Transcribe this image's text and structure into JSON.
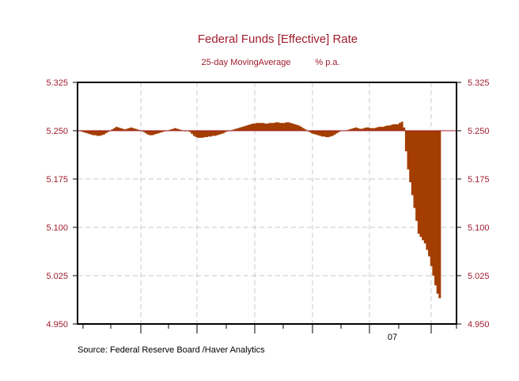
{
  "chart_data": {
    "type": "bar",
    "title": "Federal Funds [Effective] Rate",
    "subtitle_left": "25-day MovingAverage",
    "subtitle_right": "% p.a.",
    "source": "Source:  Federal Reserve Board /Haver Analytics",
    "baseline": 5.25,
    "ylim": [
      4.95,
      5.325
    ],
    "yticks": [
      "5.325",
      "5.250",
      "5.175",
      "5.100",
      "5.025",
      "4.950"
    ],
    "ytick_values": [
      5.325,
      5.25,
      5.175,
      5.1,
      5.025,
      4.95
    ],
    "x_tick_labels": [
      {
        "label": "07",
        "index": 150
      }
    ],
    "grid": true,
    "values": [
      5.25,
      5.249,
      5.248,
      5.247,
      5.246,
      5.245,
      5.244,
      5.243,
      5.243,
      5.242,
      5.242,
      5.243,
      5.244,
      5.246,
      5.248,
      5.25,
      5.252,
      5.254,
      5.256,
      5.255,
      5.254,
      5.253,
      5.252,
      5.253,
      5.254,
      5.255,
      5.254,
      5.253,
      5.252,
      5.251,
      5.25,
      5.248,
      5.246,
      5.244,
      5.243,
      5.243,
      5.244,
      5.245,
      5.246,
      5.247,
      5.248,
      5.249,
      5.25,
      5.251,
      5.252,
      5.253,
      5.254,
      5.253,
      5.252,
      5.251,
      5.25,
      5.249,
      5.25,
      5.248,
      5.245,
      5.242,
      5.24,
      5.239,
      5.239,
      5.239,
      5.24,
      5.24,
      5.241,
      5.241,
      5.242,
      5.242,
      5.243,
      5.244,
      5.245,
      5.246,
      5.248,
      5.249,
      5.25,
      5.251,
      5.252,
      5.253,
      5.254,
      5.255,
      5.256,
      5.257,
      5.258,
      5.259,
      5.26,
      5.261,
      5.261,
      5.262,
      5.262,
      5.262,
      5.262,
      5.261,
      5.261,
      5.262,
      5.262,
      5.262,
      5.263,
      5.263,
      5.262,
      5.262,
      5.262,
      5.263,
      5.263,
      5.262,
      5.261,
      5.26,
      5.259,
      5.258,
      5.256,
      5.254,
      5.252,
      5.25,
      5.248,
      5.246,
      5.245,
      5.244,
      5.243,
      5.242,
      5.241,
      5.241,
      5.24,
      5.24,
      5.241,
      5.242,
      5.244,
      5.246,
      5.248,
      5.25,
      5.25,
      5.25,
      5.251,
      5.252,
      5.253,
      5.254,
      5.255,
      5.254,
      5.253,
      5.253,
      5.254,
      5.255,
      5.255,
      5.254,
      5.254,
      5.254,
      5.255,
      5.256,
      5.256,
      5.256,
      5.257,
      5.258,
      5.258,
      5.259,
      5.26,
      5.26,
      5.26,
      5.262,
      5.264,
      5.255,
      5.218,
      5.19,
      5.17,
      5.15,
      5.13,
      5.11,
      5.09,
      5.085,
      5.08,
      5.075,
      5.065,
      5.055,
      5.04,
      5.025,
      5.01,
      4.997,
      4.99
    ]
  }
}
